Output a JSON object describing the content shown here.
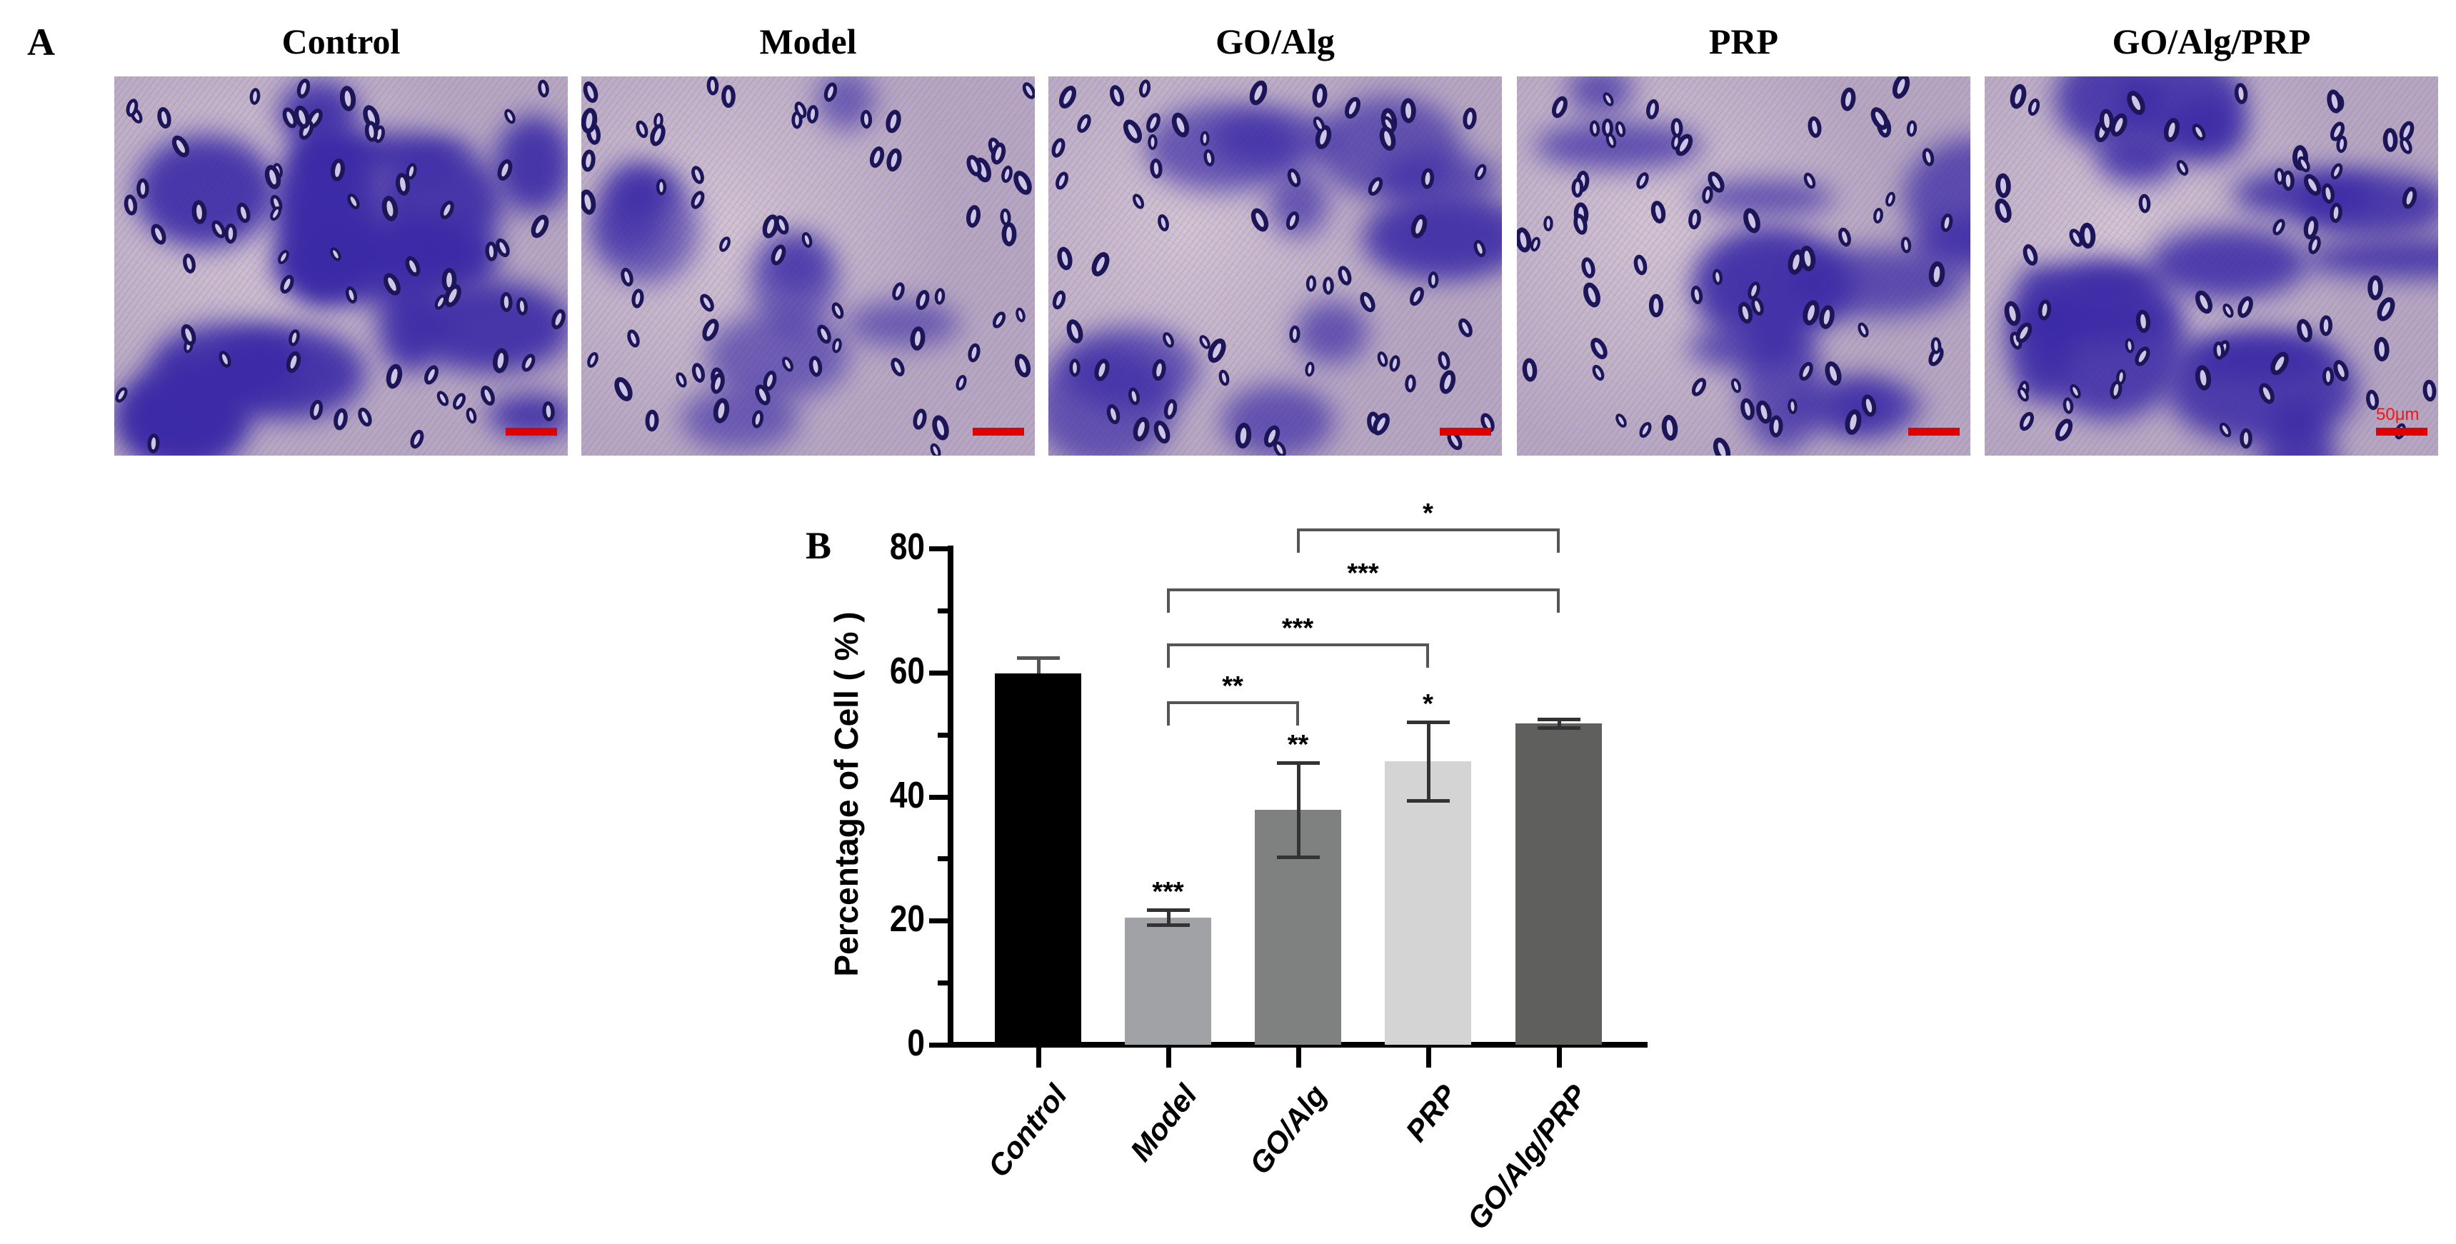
{
  "panel_a": {
    "letter": "A",
    "panels": [
      {
        "title": "Control",
        "scale_label": ""
      },
      {
        "title": "Model",
        "scale_label": ""
      },
      {
        "title": "GO/Alg",
        "scale_label": ""
      },
      {
        "title": "PRP",
        "scale_label": ""
      },
      {
        "title": "GO/Alg/PRP",
        "scale_label": "50μm"
      }
    ]
  },
  "panel_b": {
    "letter": "B",
    "ytitle": "Percentage of Cell ( % )",
    "yticks": [
      "0",
      "20",
      "40",
      "60",
      "80"
    ],
    "significance_above_bars": [
      "",
      "***",
      "**",
      "*",
      ""
    ],
    "brackets": [
      {
        "from": "GO/Alg",
        "to": "GO/Alg/PRP",
        "label": "*"
      },
      {
        "from": "Model",
        "to": "GO/Alg/PRP",
        "label": "***"
      },
      {
        "from": "Model",
        "to": "PRP",
        "label": "***"
      },
      {
        "from": "Model",
        "to": "GO/Alg",
        "label": "**"
      }
    ],
    "colors": {
      "Control": "#000000",
      "Model": "#a1a2a6",
      "GO/Alg": "#7f8180",
      "PRP": "#d5d4d5",
      "GO/Alg/PRP": "#5f5f5e",
      "scale_bar": "#e00000"
    }
  },
  "chart_data": {
    "type": "bar",
    "title": "",
    "xlabel": "",
    "ylabel": "Percentage of Cell ( % )",
    "ylim": [
      0,
      80
    ],
    "yticks": [
      0,
      20,
      40,
      60,
      80
    ],
    "categories": [
      "Control",
      "Model",
      "GO/Alg",
      "PRP",
      "GO/Alg/PRP"
    ],
    "values": [
      59.9,
      20.5,
      37.9,
      45.7,
      51.8
    ],
    "error": [
      2.5,
      1.2,
      7.6,
      6.3,
      0.7
    ],
    "significance_vs_control": [
      "",
      "***",
      "**",
      "*",
      ""
    ],
    "comparisons": [
      {
        "groups": [
          "GO/Alg",
          "GO/Alg/PRP"
        ],
        "label": "*"
      },
      {
        "groups": [
          "Model",
          "GO/Alg/PRP"
        ],
        "label": "***"
      },
      {
        "groups": [
          "Model",
          "PRP"
        ],
        "label": "***"
      },
      {
        "groups": [
          "Model",
          "GO/Alg"
        ],
        "label": "**"
      }
    ],
    "grid": false,
    "legend": null
  }
}
